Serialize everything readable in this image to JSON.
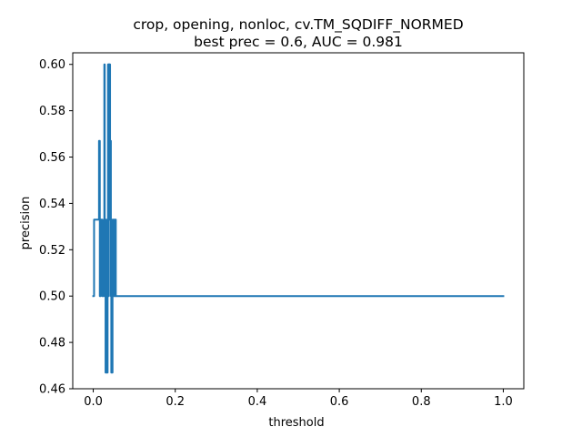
{
  "chart_data": {
    "type": "line",
    "title_line1": "crop, opening, nonloc, cv.TM_SQDIFF_NORMED",
    "title_line2": "best prec = 0.6, AUC = 0.981",
    "xlabel": "threshold",
    "ylabel": "precision",
    "xlim": [
      -0.05,
      1.05
    ],
    "ylim": [
      0.46,
      0.605
    ],
    "xticks": [
      0.0,
      0.2,
      0.4,
      0.6,
      0.8,
      1.0
    ],
    "xtick_labels": [
      "0.0",
      "0.2",
      "0.4",
      "0.6",
      "0.8",
      "1.0"
    ],
    "yticks": [
      0.46,
      0.48,
      0.5,
      0.52,
      0.54,
      0.56,
      0.58,
      0.6
    ],
    "ytick_labels": [
      "0.46",
      "0.48",
      "0.50",
      "0.52",
      "0.54",
      "0.56",
      "0.58",
      "0.60"
    ],
    "grid": false,
    "series": [
      {
        "color": "#1f77b4",
        "x": [
          0.0,
          0.002,
          0.002,
          0.014,
          0.014,
          0.016,
          0.016,
          0.018,
          0.018,
          0.022,
          0.022,
          0.026,
          0.026,
          0.027,
          0.027,
          0.028,
          0.028,
          0.029,
          0.029,
          0.03,
          0.03,
          0.031,
          0.031,
          0.032,
          0.032,
          0.033,
          0.033,
          0.034,
          0.034,
          0.035,
          0.035,
          0.036,
          0.036,
          0.037,
          0.037,
          0.038,
          0.038,
          0.039,
          0.039,
          0.04,
          0.04,
          0.041,
          0.041,
          0.042,
          0.042,
          0.043,
          0.043,
          0.044,
          0.044,
          0.045,
          0.045,
          0.046,
          0.046,
          0.047,
          0.047,
          0.048,
          0.048,
          0.049,
          0.049,
          0.05,
          0.05,
          0.052,
          0.052,
          0.053,
          0.053,
          0.054,
          0.054,
          0.055,
          0.055,
          0.056,
          0.056,
          0.057,
          0.057,
          0.058,
          0.058,
          0.06,
          0.06,
          1.0
        ],
        "y": [
          0.5,
          0.5,
          0.533,
          0.533,
          0.567,
          0.567,
          0.5,
          0.5,
          0.533,
          0.533,
          0.5,
          0.5,
          0.533,
          0.533,
          0.6,
          0.6,
          0.5,
          0.5,
          0.533,
          0.533,
          0.467,
          0.467,
          0.533,
          0.533,
          0.467,
          0.467,
          0.5,
          0.5,
          0.467,
          0.467,
          0.533,
          0.533,
          0.6,
          0.6,
          0.5,
          0.5,
          0.6,
          0.6,
          0.567,
          0.567,
          0.6,
          0.6,
          0.533,
          0.533,
          0.567,
          0.567,
          0.5,
          0.5,
          0.467,
          0.467,
          0.5,
          0.5,
          0.467,
          0.467,
          0.533,
          0.533,
          0.5,
          0.5,
          0.533,
          0.533,
          0.5,
          0.5,
          0.533,
          0.533,
          0.5,
          0.5,
          0.533,
          0.533,
          0.5,
          0.5,
          0.5,
          0.5,
          0.5,
          0.5,
          0.5,
          0.5,
          0.5,
          0.5
        ]
      }
    ]
  }
}
